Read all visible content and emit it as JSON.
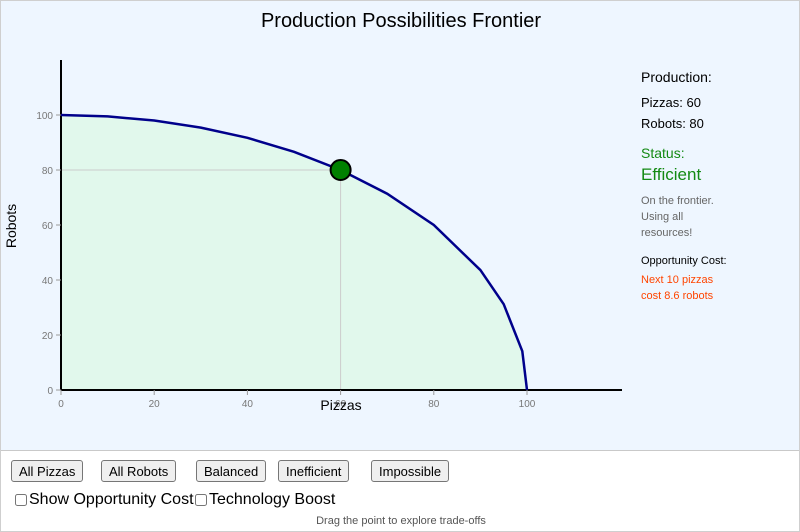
{
  "title": "Production Possibilities Frontier",
  "chart_data": {
    "type": "line",
    "xlabel": "Pizzas",
    "ylabel": "Robots",
    "xlim": [
      0,
      120
    ],
    "ylim": [
      0,
      120
    ],
    "x_ticks": [
      0,
      20,
      40,
      60,
      80,
      100
    ],
    "y_ticks": [
      0,
      20,
      40,
      60,
      80,
      100
    ],
    "series": [
      {
        "x": [
          0,
          10,
          20,
          30,
          40,
          50,
          60,
          70,
          80,
          90,
          95,
          99,
          100
        ],
        "y": [
          100,
          99.5,
          98,
          95.4,
          91.7,
          86.6,
          80,
          71.4,
          60,
          43.6,
          31.2,
          14.1,
          0
        ]
      }
    ],
    "point": {
      "x": 60,
      "y": 80
    },
    "colors": {
      "frontier": "#00008b",
      "fill": "#e1f8ec",
      "point": "#008000",
      "guide": "#cccccc"
    }
  },
  "info": {
    "production_heading": "Production:",
    "pizzas_line": "Pizzas: 60",
    "robots_line": "Robots: 80",
    "status_heading": "Status:",
    "status_value": "Efficient",
    "status_desc": "On the frontier. Using all resources!",
    "opp_heading": "Opportunity Cost:",
    "opp_desc": "Next 10 pizzas cost 8.6 robots"
  },
  "buttons": {
    "all_pizzas": "All Pizzas",
    "all_robots": "All Robots",
    "balanced": "Balanced",
    "inefficient": "Inefficient",
    "impossible": "Impossible"
  },
  "checkboxes": {
    "show_opportunity_cost": "Show Opportunity Cost",
    "technology_boost": "Technology Boost"
  },
  "hint": "Drag the point to explore trade-offs"
}
